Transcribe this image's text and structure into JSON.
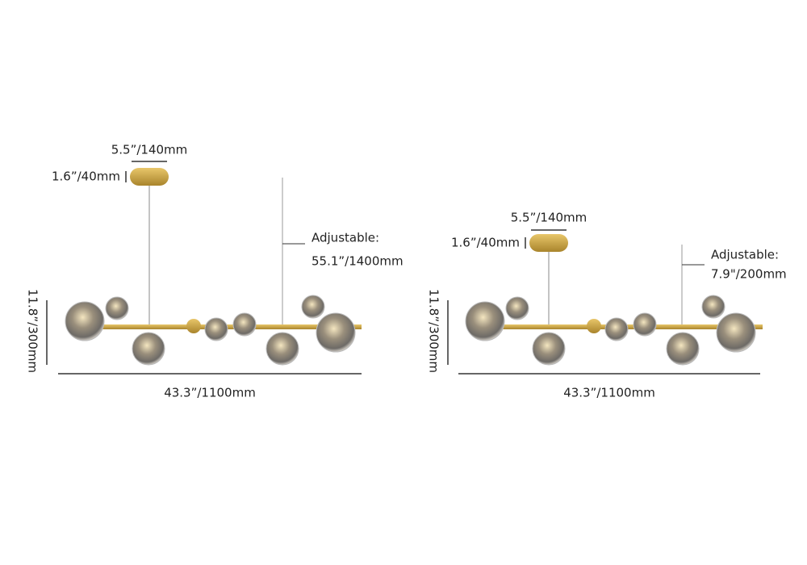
{
  "diagrams": [
    {
      "canopy_width": "5.5”/140mm",
      "canopy_height": "1.6”/40mm",
      "adjustable_label": "Adjustable:",
      "adjustable_length": "55.1”/1400mm",
      "height": "11.8”/300mm",
      "width": "43.3”/1100mm"
    },
    {
      "canopy_width": "5.5”/140mm",
      "canopy_height": "1.6”/40mm",
      "adjustable_label": "Adjustable:",
      "adjustable_length": "7.9\"/200mm",
      "height": "11.8”/300mm",
      "width": "43.3”/1100mm"
    }
  ]
}
